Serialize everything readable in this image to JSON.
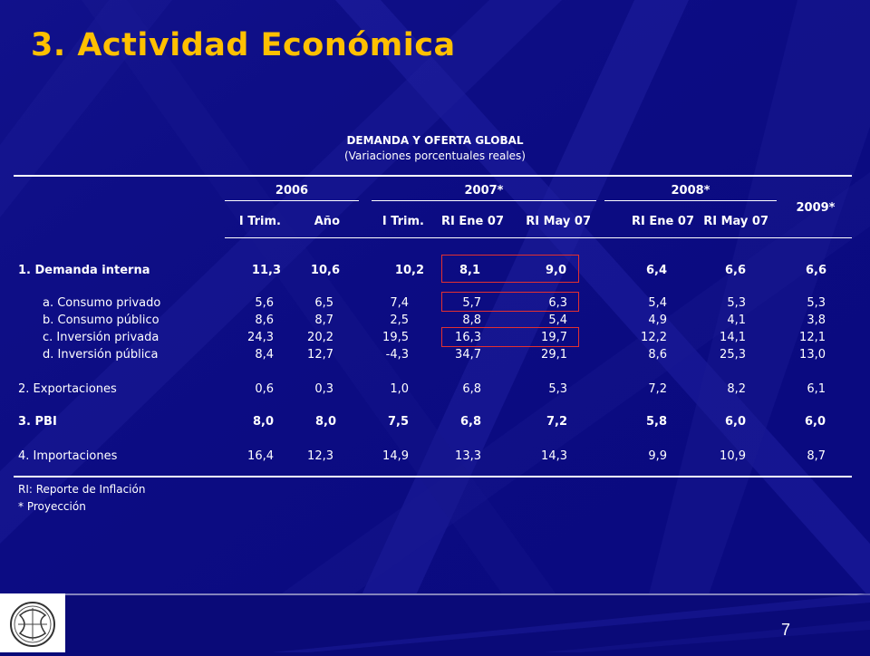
{
  "slide": {
    "title": "3.  Actividad Económica",
    "table_title": "DEMANDA Y OFERTA GLOBAL",
    "table_subtitle": "(Variaciones porcentuales reales)",
    "page_number": "7"
  },
  "table": {
    "year_headers": [
      "2006",
      "2007*",
      "2008*",
      "2009*"
    ],
    "sub_headers": [
      "I Trim.",
      "Año",
      "I Trim.",
      "RI Ene 07",
      "RI May 07",
      "RI Ene 07",
      "RI May 07"
    ],
    "rows": [
      {
        "label": "1.   Demanda interna",
        "bold": true,
        "values": [
          "11,3",
          "10,6",
          "10,2",
          "8,1",
          "9,0",
          "6,4",
          "6,6",
          "6,6"
        ]
      },
      {
        "label": "a. Consumo privado",
        "bold": false,
        "values": [
          "5,6",
          "6,5",
          "7,4",
          "5,7",
          "6,3",
          "5,4",
          "5,3",
          "5,3"
        ]
      },
      {
        "label": "b. Consumo público",
        "bold": false,
        "values": [
          "8,6",
          "8,7",
          "2,5",
          "8,8",
          "5,4",
          "4,9",
          "4,1",
          "3,8"
        ]
      },
      {
        "label": "c. Inversión privada",
        "bold": false,
        "values": [
          "24,3",
          "20,2",
          "19,5",
          "16,3",
          "19,7",
          "12,2",
          "14,1",
          "12,1"
        ]
      },
      {
        "label": "d. Inversión pública",
        "bold": false,
        "values": [
          "8,4",
          "12,7",
          "-4,3",
          "34,7",
          "29,1",
          "8,6",
          "25,3",
          "13,0"
        ]
      },
      {
        "label": "2.   Exportaciones",
        "bold": false,
        "values": [
          "0,6",
          "0,3",
          "1,0",
          "6,8",
          "5,3",
          "7,2",
          "8,2",
          "6,1"
        ]
      },
      {
        "label": "3.   PBI",
        "bold": true,
        "values": [
          "8,0",
          "8,0",
          "7,5",
          "6,8",
          "7,2",
          "5,8",
          "6,0",
          "6,0"
        ]
      },
      {
        "label": "4.   Importaciones",
        "bold": false,
        "values": [
          "16,4",
          "12,3",
          "14,9",
          "13,3",
          "14,3",
          "9,9",
          "10,9",
          "8,7"
        ]
      }
    ]
  },
  "notes": {
    "line1": "RI: Reporte de Inflación",
    "line2": "* Proyección"
  },
  "colors": {
    "background": "#0a0a78",
    "title": "#ffc000",
    "highlight_box": "#e23030"
  }
}
